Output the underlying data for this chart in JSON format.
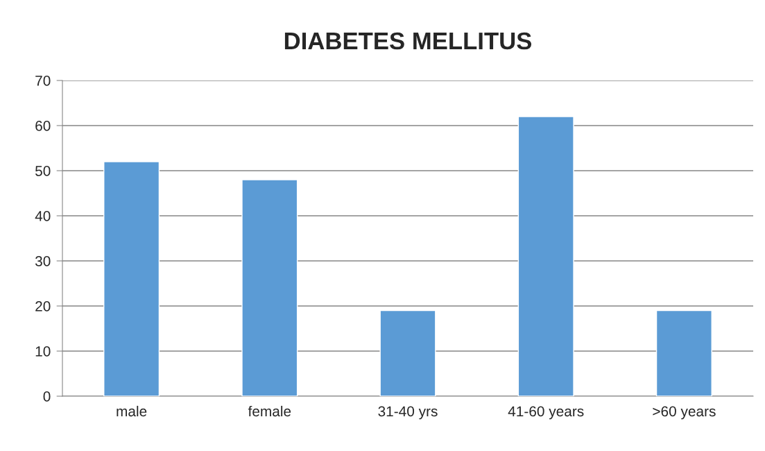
{
  "chart_data": {
    "type": "bar",
    "title": "DIABETES MELLITUS",
    "categories": [
      "male",
      "female",
      "31-40 yrs",
      "41-60 years",
      ">60 years"
    ],
    "values": [
      52,
      48,
      19,
      62,
      19
    ],
    "color": "#5b9bd5",
    "ylim": [
      0,
      70
    ],
    "yticks": [
      0,
      10,
      20,
      30,
      40,
      50,
      60,
      70
    ],
    "grid": "y",
    "legend": false
  }
}
